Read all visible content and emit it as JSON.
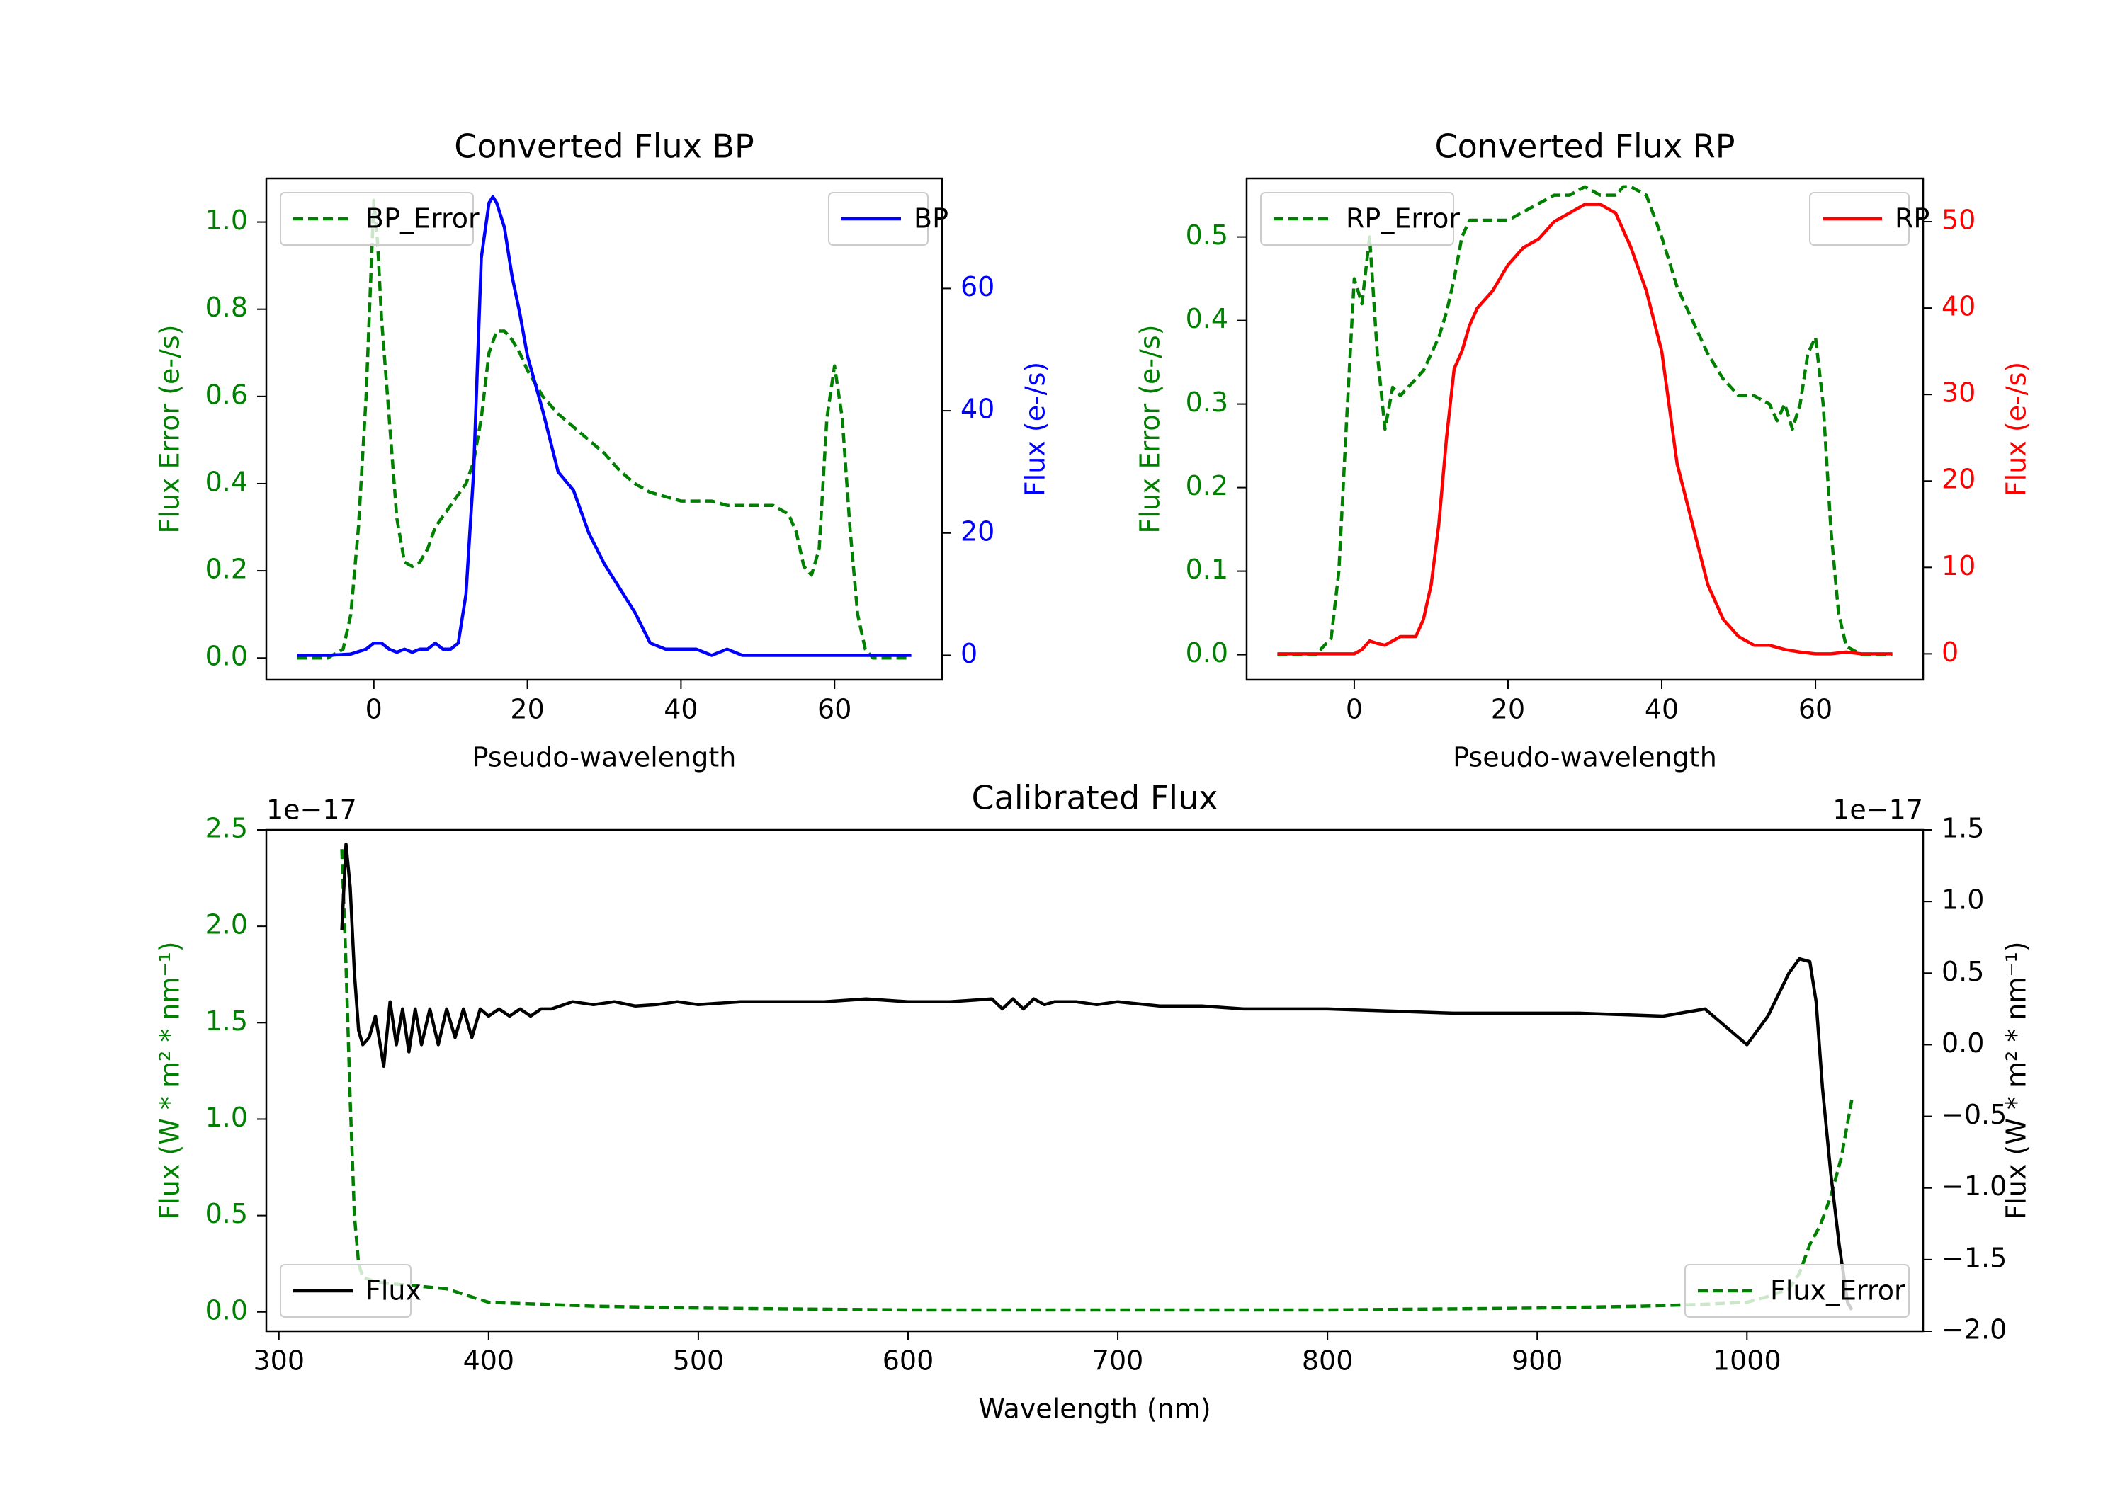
{
  "chart_data": [
    {
      "type": "line",
      "title": "Converted Flux BP",
      "xlabel": "Pseudo-wavelength",
      "ylabel_left": "Flux Error (e-/s)",
      "ylabel_right": "Flux (e-/s)",
      "xlim": [
        -14,
        74
      ],
      "ylim_left": [
        -0.05,
        1.1
      ],
      "ylim_right": [
        -4,
        78
      ],
      "xticks": [
        0,
        20,
        40,
        60
      ],
      "yticks_left": [
        0.0,
        0.2,
        0.4,
        0.6,
        0.8,
        1.0
      ],
      "yticks_right": [
        0,
        20,
        40,
        60
      ],
      "legend_left": {
        "label": "BP_Error",
        "loc": "upper left"
      },
      "legend_right": {
        "label": "BP",
        "loc": "upper right"
      },
      "series": [
        {
          "name": "BP_Error",
          "axis": "left",
          "style": "dashed",
          "color": "#008000",
          "x": [
            -10,
            -6,
            -4,
            -3,
            -2,
            -1,
            0,
            0.5,
            1,
            2,
            3,
            4,
            5,
            6,
            7,
            8,
            10,
            12,
            13,
            14,
            15,
            16,
            17,
            18,
            19,
            20,
            22,
            24,
            26,
            28,
            30,
            32,
            34,
            36,
            38,
            40,
            42,
            44,
            46,
            48,
            50,
            52,
            54,
            55,
            56,
            57,
            58,
            59,
            60,
            61,
            62,
            63,
            64,
            65,
            66,
            68,
            70
          ],
          "y": [
            0,
            0,
            0.02,
            0.1,
            0.3,
            0.6,
            1.05,
            0.95,
            0.78,
            0.55,
            0.32,
            0.22,
            0.21,
            0.22,
            0.25,
            0.3,
            0.35,
            0.4,
            0.45,
            0.55,
            0.7,
            0.75,
            0.75,
            0.73,
            0.7,
            0.66,
            0.6,
            0.56,
            0.53,
            0.5,
            0.47,
            0.43,
            0.4,
            0.38,
            0.37,
            0.36,
            0.36,
            0.36,
            0.35,
            0.35,
            0.35,
            0.35,
            0.33,
            0.29,
            0.21,
            0.19,
            0.25,
            0.55,
            0.67,
            0.55,
            0.3,
            0.1,
            0.02,
            0,
            0,
            0,
            0
          ]
        },
        {
          "name": "BP",
          "axis": "right",
          "style": "solid",
          "color": "#0000ff",
          "x": [
            -10,
            -6,
            -3,
            -1,
            0,
            1,
            2,
            3,
            4,
            5,
            6,
            7,
            8,
            9,
            10,
            11,
            12,
            13,
            14,
            15,
            15.5,
            16,
            17,
            18,
            19,
            20,
            22,
            24,
            26,
            28,
            30,
            32,
            34,
            36,
            38,
            40,
            42,
            44,
            46,
            48,
            50,
            52,
            54,
            56,
            58,
            60,
            62,
            64,
            66,
            68,
            70
          ],
          "y": [
            0,
            0,
            0.2,
            1,
            2,
            2,
            1,
            0.5,
            1,
            0.5,
            1,
            1,
            2,
            1,
            1,
            2,
            10,
            30,
            65,
            74,
            75,
            74,
            70,
            62,
            56,
            49,
            40,
            30,
            27,
            20,
            15,
            11,
            7,
            2,
            1,
            1,
            1,
            0,
            1,
            0,
            0,
            0,
            0,
            0,
            0,
            0,
            0,
            0,
            0,
            0,
            0
          ]
        }
      ]
    },
    {
      "type": "line",
      "title": "Converted Flux RP",
      "xlabel": "Pseudo-wavelength",
      "ylabel_left": "Flux Error (e-/s)",
      "ylabel_right": "Flux (e-/s)",
      "xlim": [
        -14,
        74
      ],
      "ylim_left": [
        -0.03,
        0.57
      ],
      "ylim_right": [
        -3,
        55
      ],
      "xticks": [
        0,
        20,
        40,
        60
      ],
      "yticks_left": [
        0.0,
        0.1,
        0.2,
        0.3,
        0.4,
        0.5
      ],
      "yticks_right": [
        0,
        10,
        20,
        30,
        40,
        50
      ],
      "legend_left": {
        "label": "RP_Error",
        "loc": "upper left"
      },
      "legend_right": {
        "label": "RP",
        "loc": "upper right"
      },
      "series": [
        {
          "name": "RP_Error",
          "axis": "left",
          "style": "dashed",
          "color": "#008000",
          "x": [
            -10,
            -5,
            -3,
            -2,
            -1,
            0,
            1,
            2,
            3,
            4,
            5,
            6,
            7,
            8,
            9,
            10,
            11,
            12,
            13,
            14,
            15,
            16,
            18,
            20,
            22,
            24,
            26,
            28,
            30,
            32,
            34,
            35,
            36,
            38,
            40,
            42,
            44,
            46,
            48,
            50,
            52,
            54,
            55,
            56,
            57,
            58,
            59,
            60,
            61,
            62,
            63,
            64,
            66,
            70
          ],
          "y": [
            0,
            0,
            0.02,
            0.1,
            0.28,
            0.45,
            0.42,
            0.5,
            0.36,
            0.27,
            0.32,
            0.31,
            0.32,
            0.33,
            0.34,
            0.36,
            0.38,
            0.41,
            0.45,
            0.5,
            0.52,
            0.52,
            0.52,
            0.52,
            0.53,
            0.54,
            0.55,
            0.55,
            0.56,
            0.55,
            0.55,
            0.56,
            0.56,
            0.55,
            0.5,
            0.44,
            0.4,
            0.36,
            0.33,
            0.31,
            0.31,
            0.3,
            0.28,
            0.3,
            0.27,
            0.3,
            0.36,
            0.38,
            0.3,
            0.15,
            0.05,
            0.01,
            0,
            0
          ]
        },
        {
          "name": "RP",
          "axis": "right",
          "style": "solid",
          "color": "#ff0000",
          "x": [
            -10,
            -5,
            -2,
            0,
            1,
            2,
            3,
            4,
            5,
            6,
            7,
            8,
            9,
            10,
            11,
            12,
            13,
            14,
            15,
            16,
            18,
            20,
            22,
            24,
            26,
            28,
            30,
            32,
            34,
            36,
            38,
            40,
            42,
            44,
            46,
            48,
            50,
            52,
            54,
            56,
            58,
            60,
            62,
            64,
            66,
            70
          ],
          "y": [
            0,
            0,
            0,
            0,
            0.5,
            1.5,
            1.2,
            1,
            1.5,
            2,
            2,
            2,
            4,
            8,
            15,
            25,
            33,
            35,
            38,
            40,
            42,
            45,
            47,
            48,
            50,
            51,
            52,
            52,
            51,
            47,
            42,
            35,
            22,
            15,
            8,
            4,
            2,
            1,
            1,
            0.5,
            0.2,
            0,
            0,
            0.2,
            0,
            0
          ]
        }
      ]
    },
    {
      "type": "line",
      "title": "Calibrated Flux",
      "xlabel": "Wavelength (nm)",
      "ylabel_left": "Flux (W * m² * nm⁻¹)",
      "ylabel_right": "Flux (W * m² * nm⁻¹)",
      "offset_left": "1e−17",
      "offset_right": "1e−17",
      "xlim": [
        294,
        1084
      ],
      "ylim_left": [
        -0.1,
        2.5
      ],
      "ylim_right": [
        -2.0,
        1.5
      ],
      "xticks": [
        300,
        400,
        500,
        600,
        700,
        800,
        900,
        1000
      ],
      "yticks_left": [
        0.0,
        0.5,
        1.0,
        1.5,
        2.0,
        2.5
      ],
      "yticks_right": [
        -2.0,
        -1.5,
        -1.0,
        -0.5,
        0.0,
        0.5,
        1.0,
        1.5
      ],
      "legend_left": {
        "label": "Flux",
        "loc": "lower left"
      },
      "legend_right": {
        "label": "Flux_Error",
        "loc": "lower right"
      },
      "series": [
        {
          "name": "Flux_Error",
          "axis": "left",
          "style": "dashed",
          "color": "#008000",
          "x": [
            330,
            332,
            334,
            336,
            338,
            340,
            345,
            350,
            360,
            380,
            400,
            450,
            500,
            600,
            640,
            700,
            800,
            900,
            950,
            980,
            1000,
            1010,
            1020,
            1025,
            1030,
            1035,
            1040,
            1045,
            1050
          ],
          "y": [
            2.4,
            1.8,
            1.1,
            0.5,
            0.25,
            0.18,
            0.16,
            0.15,
            0.14,
            0.12,
            0.05,
            0.03,
            0.02,
            0.01,
            0.01,
            0.01,
            0.01,
            0.02,
            0.03,
            0.04,
            0.05,
            0.08,
            0.12,
            0.2,
            0.35,
            0.45,
            0.6,
            0.8,
            1.1
          ]
        },
        {
          "name": "Flux",
          "axis": "right",
          "style": "solid",
          "color": "#000000",
          "x": [
            330,
            332,
            334,
            336,
            338,
            340,
            343,
            346,
            350,
            353,
            356,
            359,
            362,
            365,
            368,
            372,
            376,
            380,
            384,
            388,
            392,
            396,
            400,
            405,
            410,
            415,
            420,
            425,
            430,
            440,
            450,
            460,
            470,
            480,
            490,
            500,
            520,
            540,
            560,
            580,
            600,
            620,
            640,
            645,
            650,
            655,
            660,
            665,
            670,
            680,
            690,
            700,
            720,
            740,
            760,
            780,
            800,
            820,
            840,
            860,
            880,
            900,
            920,
            940,
            960,
            980,
            1000,
            1010,
            1020,
            1025,
            1030,
            1033,
            1036,
            1040,
            1044,
            1048,
            1050
          ],
          "y": [
            0.8,
            1.4,
            1.1,
            0.5,
            0.1,
            0,
            0.05,
            0.2,
            -0.15,
            0.3,
            0.0,
            0.25,
            -0.05,
            0.25,
            0.0,
            0.25,
            0.0,
            0.25,
            0.05,
            0.25,
            0.05,
            0.25,
            0.2,
            0.25,
            0.2,
            0.25,
            0.2,
            0.25,
            0.25,
            0.3,
            0.28,
            0.3,
            0.27,
            0.28,
            0.3,
            0.28,
            0.3,
            0.3,
            0.3,
            0.32,
            0.3,
            0.3,
            0.32,
            0.25,
            0.32,
            0.25,
            0.32,
            0.28,
            0.3,
            0.3,
            0.28,
            0.3,
            0.27,
            0.27,
            0.25,
            0.25,
            0.25,
            0.24,
            0.23,
            0.22,
            0.22,
            0.22,
            0.22,
            0.21,
            0.2,
            0.25,
            0.0,
            0.2,
            0.5,
            0.6,
            0.58,
            0.3,
            -0.3,
            -0.9,
            -1.4,
            -1.8,
            -1.85
          ]
        }
      ]
    }
  ]
}
